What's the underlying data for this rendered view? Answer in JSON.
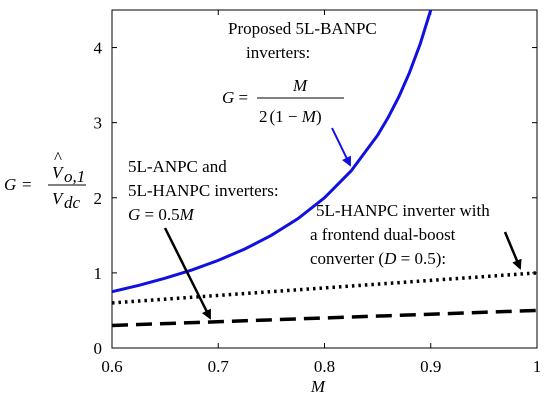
{
  "chart_data": {
    "type": "line",
    "xlabel": "M",
    "ylabel": {
      "lhs": "G",
      "numerator": "V",
      "numerator_hat": "^",
      "numerator_sub": "o,1",
      "denominator": "V",
      "denominator_sub": "dc"
    },
    "xlim": [
      0.6,
      1.0
    ],
    "ylim": [
      0,
      4.5
    ],
    "x_ticks": [
      "0.6",
      "0.7",
      "0.8",
      "0.9",
      "1"
    ],
    "y_ticks": [
      "0",
      "1",
      "2",
      "3",
      "4"
    ],
    "grid": false,
    "colors": {
      "banpc": "#1010e0",
      "other": "#000000"
    },
    "series": [
      {
        "key": "banpc",
        "style": "solid",
        "x": [
          0.6,
          0.625,
          0.65,
          0.675,
          0.7,
          0.725,
          0.75,
          0.775,
          0.8,
          0.825,
          0.85,
          0.86,
          0.87,
          0.88,
          0.89,
          0.9
        ],
        "y": [
          0.75,
          0.833,
          0.929,
          1.038,
          1.167,
          1.318,
          1.5,
          1.722,
          2.0,
          2.357,
          2.833,
          3.071,
          3.346,
          3.667,
          4.045,
          4.5
        ]
      },
      {
        "key": "dualboost",
        "style": "dotted",
        "x": [
          0.6,
          1.0
        ],
        "y": [
          0.6,
          1.0
        ]
      },
      {
        "key": "anpc",
        "style": "dashed",
        "x": [
          0.6,
          1.0
        ],
        "y": [
          0.3,
          0.5
        ]
      }
    ],
    "annotations": {
      "banpc": {
        "line1": "Proposed 5L-BANPC",
        "line2": "inverters:",
        "formula_lhs": "G =",
        "formula_num": "M",
        "formula_den_pre": "2",
        "formula_den_mid": "1 − ",
        "formula_den_var": "M"
      },
      "anpc": {
        "line1": "5L-ANPC and",
        "line2": "5L-HANPC inverters:",
        "formula_var": "G",
        "formula_mid": " = 0.5",
        "formula_end": "M"
      },
      "dualboost": {
        "line1": "5L-HANPC inverter with",
        "line2": "a frontend dual-boost",
        "line3_pre": "converter (",
        "line3_var": "D",
        "line3_post": " = 0.5):"
      }
    }
  }
}
